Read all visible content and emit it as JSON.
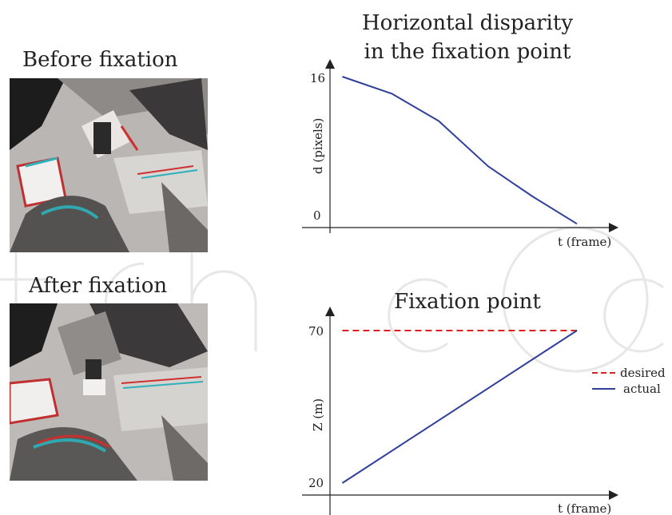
{
  "captions": {
    "before": "Before fixation",
    "after": "After fixation"
  },
  "chart_data": [
    {
      "type": "line",
      "title_lines": [
        "Horizontal disparity",
        "in the fixation point"
      ],
      "xlabel": "t (frame)",
      "ylabel": "d (pixels)",
      "ytick_labels": [
        "16",
        "0"
      ],
      "yticks": [
        16,
        0
      ],
      "ylim": [
        -1,
        19
      ],
      "xlim": [
        0,
        100
      ],
      "grid": false,
      "series": [
        {
          "color": "#2f3f9a",
          "dashed": false,
          "x": [
            5,
            25,
            44,
            64,
            82,
            100
          ],
          "y": [
            16,
            14.2,
            11.3,
            6.5,
            3.3,
            0.4
          ]
        }
      ]
    },
    {
      "type": "line",
      "title": "Fixation point",
      "xlabel": "t (frame)",
      "ylabel": "Z (m)",
      "ytick_labels": [
        "70",
        "20"
      ],
      "yticks": [
        70,
        20
      ],
      "ylim": [
        15,
        80
      ],
      "xlim": [
        0,
        100
      ],
      "grid": false,
      "legend_position": "right",
      "series": [
        {
          "name": "desired",
          "color": "#e02020",
          "dashed": true,
          "x": [
            5,
            100
          ],
          "y": [
            70,
            70
          ]
        },
        {
          "name": "actual",
          "color": "#2f3f9a",
          "dashed": false,
          "x": [
            5,
            100
          ],
          "y": [
            20,
            70
          ]
        }
      ]
    }
  ]
}
